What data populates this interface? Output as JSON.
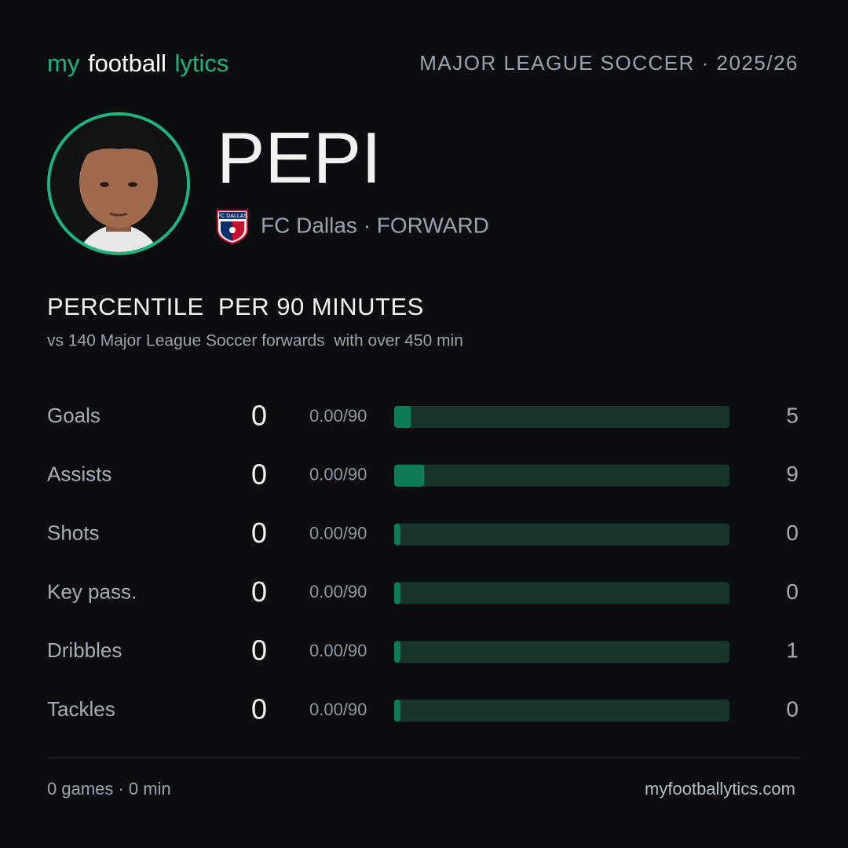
{
  "header": {
    "logo": [
      "my",
      "football",
      "lytics"
    ],
    "competition": "MAJOR LEAGUE SOCCER · 2025/26"
  },
  "player": {
    "name": "PEPI",
    "badge": "FC DALLAS",
    "team": "FC Dallas · FORWARD"
  },
  "section": {
    "title": "PERCENTILE  PER 90 MINUTES",
    "subtitle": "vs 140 Major League Soccer forwards  with over 450 min"
  },
  "stats": {
    "xlim": [
      0,
      100
    ],
    "rows": [
      {
        "label": "Goals",
        "value": 0,
        "per90": "0.00/90",
        "percentile": 5
      },
      {
        "label": "Assists",
        "value": 0,
        "per90": "0.00/90",
        "percentile": 9
      },
      {
        "label": "Shots",
        "value": 0,
        "per90": "0.00/90",
        "percentile": 0
      },
      {
        "label": "Key pass.",
        "value": 0,
        "per90": "0.00/90",
        "percentile": 0
      },
      {
        "label": "Dribbles",
        "value": 0,
        "per90": "0.00/90",
        "percentile": 1
      },
      {
        "label": "Tackles",
        "value": 0,
        "per90": "0.00/90",
        "percentile": 0
      }
    ]
  },
  "footer": {
    "left": "0 games · 0 min",
    "right": "myfootballytics.com"
  }
}
